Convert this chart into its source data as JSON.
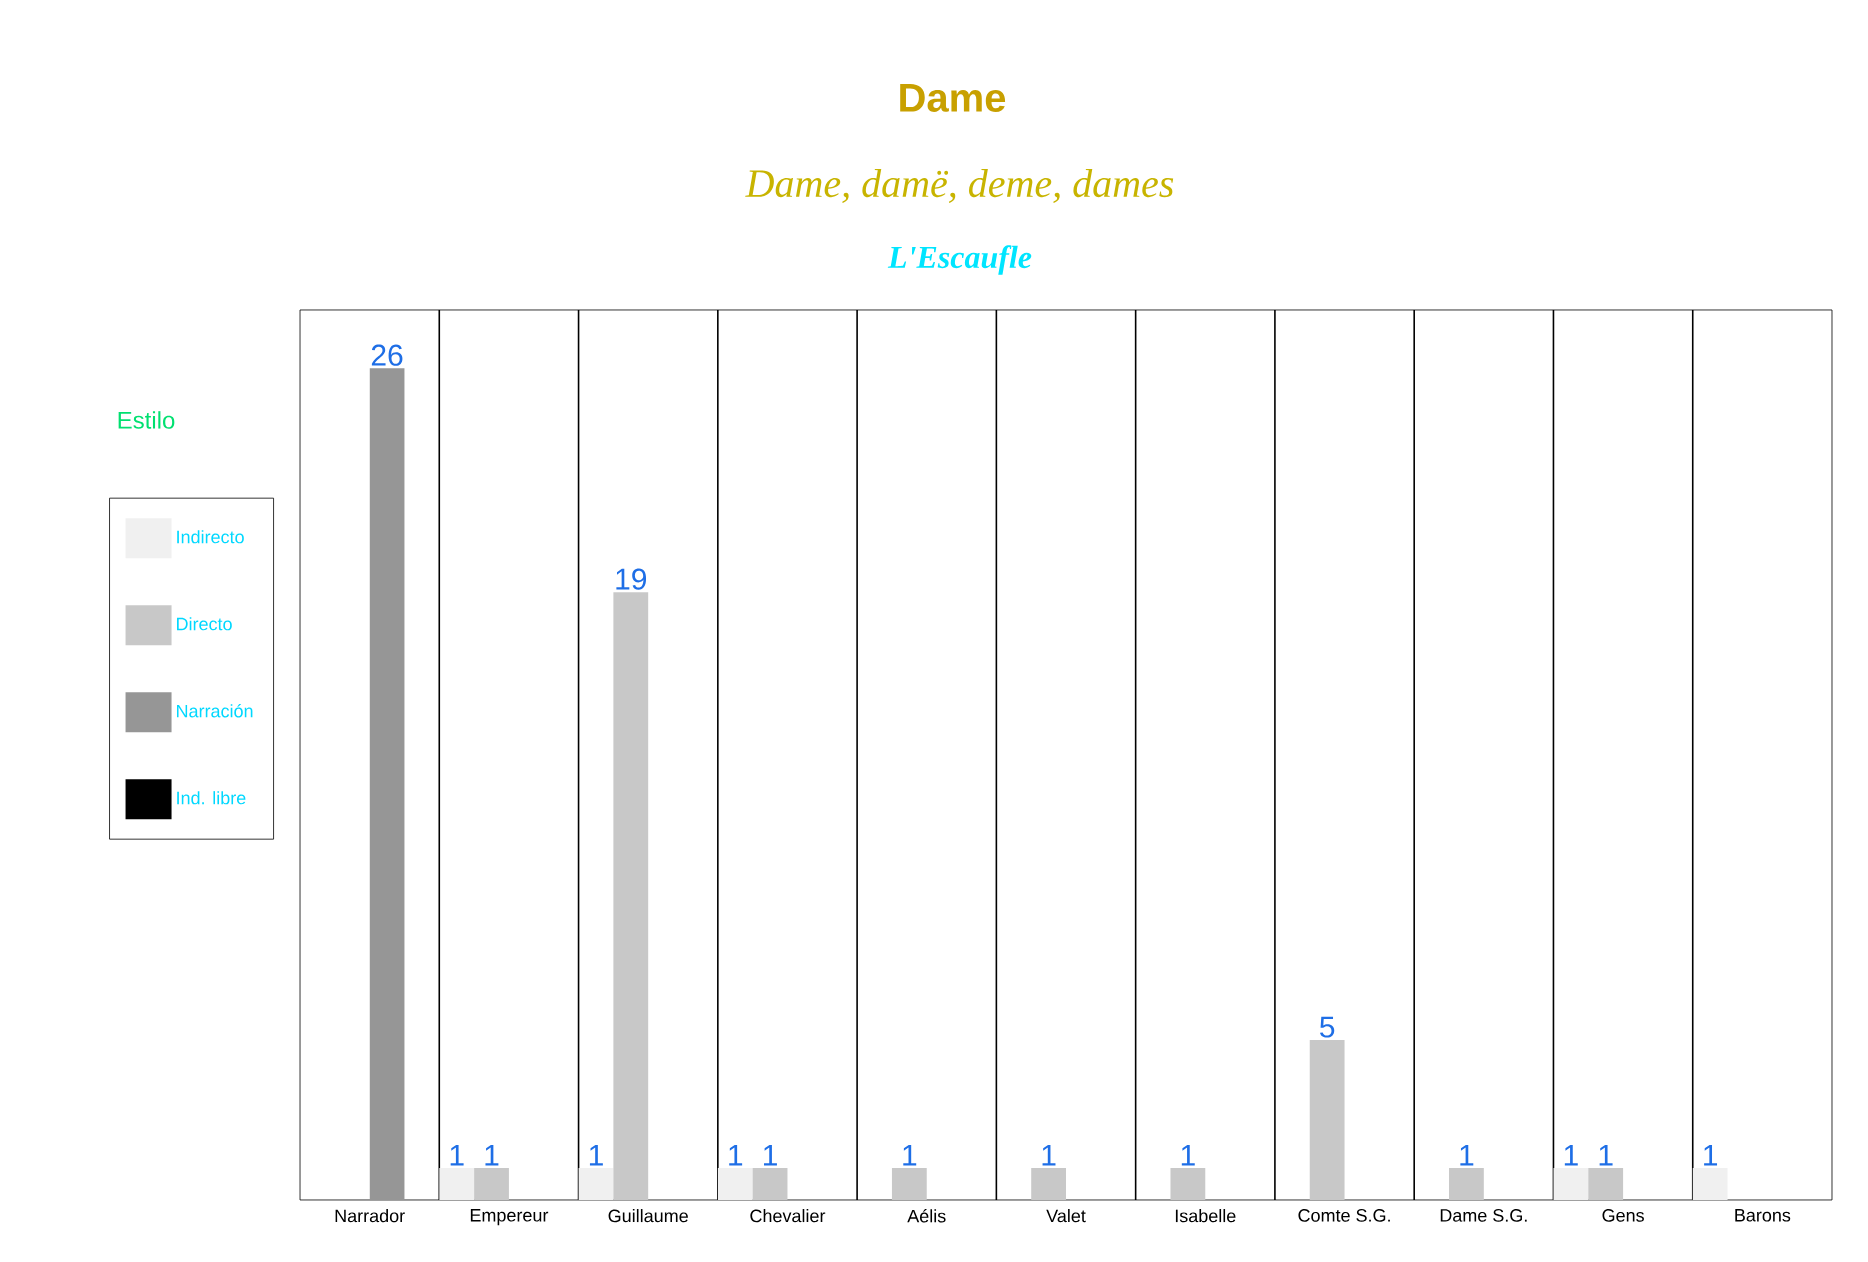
{
  "chart_data": {
    "type": "bar",
    "title": "Dame",
    "subtitle": "Dame, damë, deme, dames",
    "annotations": [
      "L'Escaufle"
    ],
    "categories": [
      "Narrador",
      "Empereur",
      "Guillaume",
      "Chevalier",
      "Aélis",
      "Valet",
      "Isabelle",
      "Comte S.G.",
      "Dame S.G.",
      "Gens",
      "Barons"
    ],
    "legend_title": "Estilo",
    "legend": "left",
    "grid": "x",
    "data_labels": true,
    "series": [
      {
        "name": "Indirecto",
        "color": "#f0f0f0",
        "values": [
          null,
          1,
          1,
          1,
          null,
          null,
          null,
          null,
          null,
          1,
          1
        ]
      },
      {
        "name": "Directo",
        "color": "#c8c8c8",
        "values": [
          null,
          1,
          19,
          1,
          1,
          1,
          1,
          5,
          1,
          1,
          null
        ]
      },
      {
        "name": "Narración",
        "color": "#969696",
        "values": [
          26,
          null,
          null,
          null,
          null,
          null,
          null,
          null,
          null,
          null,
          null
        ]
      },
      {
        "name": "Ind. libre",
        "color": "#000000",
        "values": [
          null,
          null,
          null,
          null,
          null,
          null,
          null,
          null,
          null,
          null,
          null
        ]
      }
    ]
  }
}
